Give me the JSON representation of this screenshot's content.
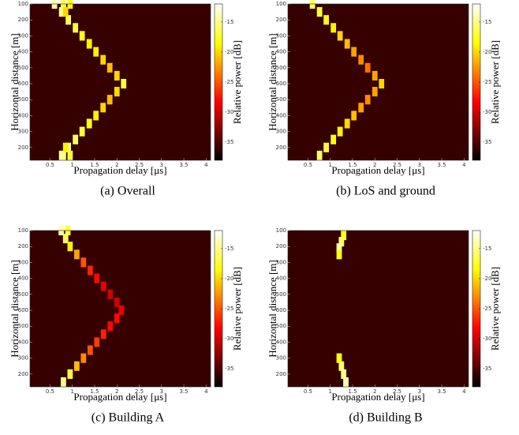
{
  "chart_data": [
    {
      "type": "heatmap",
      "caption": "(a) Overall",
      "xlabel": "Propagation delay [μs]",
      "ylabel": "Horizontal distance [m]",
      "colorbar_label": "Relative power [dB]",
      "xlim": [
        0.05,
        4.1
      ],
      "xticks": [
        0.5,
        1,
        1.5,
        2,
        2.5,
        3,
        3.5,
        4
      ],
      "ylim": [
        0,
        9.8
      ],
      "yticks": [
        {
          "value": 0,
          "label": "100"
        },
        {
          "value": 1,
          "label": "200"
        },
        {
          "value": 2,
          "label": "300"
        },
        {
          "value": 3,
          "label": "400"
        },
        {
          "value": 4,
          "label": "500"
        },
        {
          "value": 5,
          "label": "600"
        },
        {
          "value": 6,
          "label": "500"
        },
        {
          "value": 7,
          "label": "400"
        },
        {
          "value": 8,
          "label": "300"
        },
        {
          "value": 9,
          "label": "200"
        }
      ],
      "clim": [
        -38,
        -12
      ],
      "cticks": [
        -15,
        -20,
        -25,
        -30,
        -35
      ],
      "x": [
        0.6,
        0.76,
        0.91,
        1.07,
        1.22,
        1.38,
        1.53,
        1.69,
        1.84,
        2.0,
        2.15,
        2.0,
        1.84,
        1.69,
        1.53,
        1.38,
        1.22,
        1.07,
        0.91,
        0.76,
        0.8,
        0.95,
        0.85,
        0.8,
        0.95,
        0.85
      ],
      "y": [
        0,
        0.5,
        1,
        1.5,
        2,
        2.5,
        3,
        3.5,
        4,
        4.5,
        5,
        5.5,
        6,
        6.5,
        7,
        7.5,
        8,
        8.5,
        9,
        9.5,
        0,
        0,
        0.5,
        9.5,
        9.5,
        9
      ],
      "values": [
        -14,
        -15,
        -16,
        -17,
        -18,
        -19,
        -19,
        -20,
        -21,
        -20,
        -17,
        -20,
        -21,
        -20,
        -19,
        -18,
        -17,
        -16,
        -15,
        -14,
        -16,
        -18,
        -20,
        -15,
        -17,
        -19
      ]
    },
    {
      "type": "heatmap",
      "caption": "(b) LoS and ground",
      "xlabel": "Propagation delay [μs]",
      "ylabel": "Horizontal distance [m]",
      "colorbar_label": "Relative power [dB]",
      "xlim": [
        0.05,
        4.1
      ],
      "xticks": [
        0.5,
        1,
        1.5,
        2,
        2.5,
        3,
        3.5,
        4
      ],
      "ylim": [
        0,
        9.8
      ],
      "yticks": [
        {
          "value": 0,
          "label": "100"
        },
        {
          "value": 1,
          "label": "200"
        },
        {
          "value": 2,
          "label": "300"
        },
        {
          "value": 3,
          "label": "400"
        },
        {
          "value": 4,
          "label": "500"
        },
        {
          "value": 5,
          "label": "600"
        },
        {
          "value": 6,
          "label": "500"
        },
        {
          "value": 7,
          "label": "400"
        },
        {
          "value": 8,
          "label": "300"
        },
        {
          "value": 9,
          "label": "200"
        }
      ],
      "clim": [
        -38,
        -12
      ],
      "cticks": [
        -15,
        -20,
        -25,
        -30,
        -35
      ],
      "x": [
        0.6,
        0.76,
        0.91,
        1.07,
        1.22,
        1.38,
        1.53,
        1.69,
        1.84,
        2.0,
        2.15,
        2.0,
        1.84,
        1.69,
        1.53,
        1.38,
        1.22,
        1.07,
        0.91,
        0.76
      ],
      "y": [
        0,
        0.5,
        1,
        1.5,
        2,
        2.5,
        3,
        3.5,
        4,
        4.5,
        5,
        5.5,
        6,
        6.5,
        7,
        7.5,
        8,
        8.5,
        9,
        9.5
      ],
      "values": [
        -16,
        -17,
        -18,
        -19,
        -20,
        -21,
        -22,
        -23,
        -24,
        -22,
        -20,
        -22,
        -23,
        -22,
        -21,
        -20,
        -19,
        -18,
        -17,
        -16
      ]
    },
    {
      "type": "heatmap",
      "caption": "(c) Building A",
      "xlabel": "Propagation delay [μs]",
      "ylabel": "Horizontal distance [m]",
      "colorbar_label": "Relative power [dB]",
      "xlim": [
        0.05,
        4.1
      ],
      "xticks": [
        0.5,
        1,
        1.5,
        2,
        2.5,
        3,
        3.5,
        4
      ],
      "ylim": [
        0,
        9.8
      ],
      "yticks": [
        {
          "value": 0,
          "label": "100"
        },
        {
          "value": 1,
          "label": "200"
        },
        {
          "value": 2,
          "label": "300"
        },
        {
          "value": 3,
          "label": "400"
        },
        {
          "value": 4,
          "label": "500"
        },
        {
          "value": 5,
          "label": "600"
        },
        {
          "value": 6,
          "label": "500"
        },
        {
          "value": 7,
          "label": "400"
        },
        {
          "value": 8,
          "label": "300"
        },
        {
          "value": 9,
          "label": "200"
        }
      ],
      "clim": [
        -38,
        -12
      ],
      "cticks": [
        -15,
        -20,
        -25,
        -30,
        -35
      ],
      "x": [
        0.75,
        0.85,
        0.95,
        1.1,
        1.25,
        1.4,
        1.55,
        1.7,
        1.85,
        2.0,
        2.1,
        2.0,
        1.85,
        1.7,
        1.55,
        1.4,
        1.25,
        1.1,
        0.95,
        0.8,
        0.9
      ],
      "y": [
        0,
        0.5,
        1,
        1.5,
        2,
        2.5,
        3,
        3.5,
        4,
        4.5,
        5,
        5.5,
        6,
        6.5,
        7,
        7.5,
        8,
        8.5,
        9,
        9.5,
        0
      ],
      "values": [
        -14,
        -16,
        -19,
        -22,
        -25,
        -27,
        -28,
        -29,
        -30,
        -30,
        -29,
        -28,
        -28,
        -27,
        -26,
        -25,
        -23,
        -21,
        -17,
        -15,
        -17
      ]
    },
    {
      "type": "heatmap",
      "caption": "(d) Building B",
      "xlabel": "Propagation delay [μs]",
      "ylabel": "Horizontal distance [m]",
      "colorbar_label": "Relative power [dB]",
      "xlim": [
        0.05,
        4.1
      ],
      "xticks": [
        0.5,
        1,
        1.5,
        2,
        2.5,
        3,
        3.5,
        4
      ],
      "ylim": [
        0,
        9.8
      ],
      "yticks": [
        {
          "value": 0,
          "label": "100"
        },
        {
          "value": 1,
          "label": "200"
        },
        {
          "value": 2,
          "label": "300"
        },
        {
          "value": 3,
          "label": "400"
        },
        {
          "value": 4,
          "label": "500"
        },
        {
          "value": 5,
          "label": "600"
        },
        {
          "value": 6,
          "label": "500"
        },
        {
          "value": 7,
          "label": "400"
        },
        {
          "value": 8,
          "label": "300"
        },
        {
          "value": 9,
          "label": "200"
        }
      ],
      "clim": [
        -38,
        -12
      ],
      "cticks": [
        -15,
        -20,
        -25,
        -30,
        -35
      ],
      "x": [
        1.3,
        1.25,
        1.2,
        1.2,
        1.2,
        1.25,
        1.3,
        1.35
      ],
      "y": [
        0.3,
        0.7,
        1.1,
        1.5,
        8,
        8.5,
        9,
        9.5
      ],
      "values": [
        -18,
        -16,
        -14,
        -18,
        -18,
        -16,
        -15,
        -14
      ]
    }
  ]
}
